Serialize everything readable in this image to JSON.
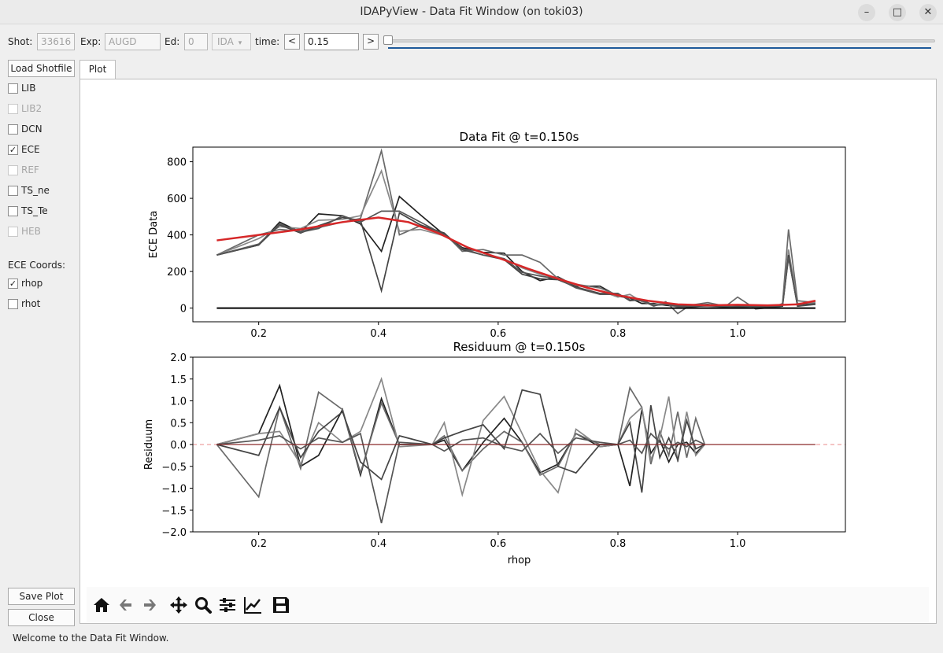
{
  "window": {
    "title": "IDAPyView - Data Fit Window (on toki03)",
    "controls": [
      "minimize-icon",
      "maximize-icon",
      "close-icon"
    ]
  },
  "toolbar": {
    "shot_label": "Shot:",
    "shot_value": "33616",
    "exp_label": "Exp:",
    "exp_value": "AUGD",
    "ed_label": "Ed:",
    "ed_value": "0",
    "diag_value": "IDA",
    "time_label": "time:",
    "time_value": "0.15",
    "prev_label": "<",
    "next_label": ">",
    "slider_fraction": 0.0
  },
  "sidebar": {
    "load_label": "Load Shotfile",
    "diagnostics": [
      {
        "label": "LIB",
        "checked": false,
        "enabled": true
      },
      {
        "label": "LIB2",
        "checked": false,
        "enabled": false
      },
      {
        "label": "DCN",
        "checked": false,
        "enabled": true
      },
      {
        "label": "ECE",
        "checked": true,
        "enabled": true
      },
      {
        "label": "REF",
        "checked": false,
        "enabled": false
      },
      {
        "label": "TS_ne",
        "checked": false,
        "enabled": true
      },
      {
        "label": "TS_Te",
        "checked": false,
        "enabled": true
      },
      {
        "label": "HEB",
        "checked": false,
        "enabled": false
      }
    ],
    "coords_label": "ECE Coords:",
    "coords": [
      {
        "label": "rhop",
        "checked": true
      },
      {
        "label": "rhot",
        "checked": false
      }
    ],
    "save_label": "Save Plot",
    "close_label": "Close"
  },
  "tabs": [
    {
      "label": "Plot"
    }
  ],
  "nav_icons": [
    "home-icon",
    "back-icon",
    "forward-icon",
    "pan-icon",
    "zoom-icon",
    "configure-subplots-icon",
    "edit-axes-icon",
    "save-figure-icon"
  ],
  "status": "Welcome to the Data Fit Window.",
  "colors": {
    "fit": "#d62728",
    "data": "#000000",
    "zero_line": "#e88a8a",
    "accent": "#1f5a9a"
  },
  "chart_data": [
    {
      "type": "line",
      "title": "Data Fit @ t=0.150s",
      "xlabel": "",
      "ylabel": "ECE Data",
      "xlim": [
        0.09,
        1.18
      ],
      "ylim": [
        -75,
        880
      ],
      "xticks": [
        0.2,
        0.4,
        0.6,
        0.8,
        1.0
      ],
      "yticks": [
        0,
        200,
        400,
        600,
        800
      ],
      "x": [
        0.13,
        0.2,
        0.235,
        0.27,
        0.3,
        0.34,
        0.37,
        0.405,
        0.435,
        0.47,
        0.51,
        0.54,
        0.575,
        0.61,
        0.64,
        0.67,
        0.7,
        0.73,
        0.77,
        0.8,
        0.82,
        0.84,
        0.86,
        0.88,
        0.9,
        0.92,
        0.95,
        0.98,
        1.0,
        1.03,
        1.06,
        1.075,
        1.085,
        1.1,
        1.13
      ],
      "series": [
        {
          "values": [
            290,
            345,
            470,
            415,
            515,
            505,
            460,
            310,
            610,
            510,
            400,
            330,
            305,
            300,
            200,
            150,
            170,
            120,
            120,
            65,
            55,
            25,
            25,
            15,
            10,
            15,
            20,
            10,
            5,
            10,
            15,
            20,
            280,
            15,
            25
          ]
        },
        {
          "values": [
            290,
            400,
            430,
            420,
            440,
            470,
            490,
            860,
            400,
            450,
            410,
            310,
            320,
            290,
            290,
            250,
            160,
            130,
            110,
            70,
            60,
            40,
            10,
            35,
            -30,
            15,
            30,
            10,
            60,
            -5,
            5,
            25,
            430,
            40,
            30
          ]
        },
        {
          "values": [
            290,
            380,
            445,
            435,
            480,
            485,
            505,
            750,
            420,
            430,
            395,
            345,
            300,
            270,
            220,
            185,
            165,
            125,
            95,
            60,
            75,
            35,
            20,
            25,
            5,
            10,
            10,
            5,
            15,
            5,
            10,
            20,
            320,
            25,
            30
          ]
        },
        {
          "values": [
            290,
            345,
            455,
            410,
            450,
            495,
            480,
            95,
            520,
            455,
            410,
            320,
            290,
            265,
            185,
            160,
            155,
            115,
            80,
            80,
            40,
            45,
            15,
            20,
            15,
            5,
            15,
            5,
            10,
            10,
            5,
            10,
            290,
            10,
            20
          ]
        },
        {
          "values": [
            290,
            350,
            460,
            415,
            435,
            505,
            470,
            530,
            530,
            470,
            400,
            325,
            290,
            270,
            195,
            175,
            160,
            110,
            75,
            75,
            45,
            40,
            15,
            20,
            10,
            10,
            15,
            10,
            5,
            10,
            10,
            15,
            275,
            15,
            20
          ]
        }
      ],
      "zero_series": {
        "x": [
          0.13,
          1.13
        ],
        "values": [
          0,
          0
        ]
      },
      "fit": {
        "x": [
          0.13,
          0.2,
          0.27,
          0.34,
          0.4,
          0.45,
          0.5,
          0.55,
          0.6,
          0.65,
          0.7,
          0.75,
          0.8,
          0.85,
          0.9,
          0.95,
          1.0,
          1.05,
          1.1,
          1.13
        ],
        "values": [
          370,
          400,
          430,
          470,
          495,
          470,
          410,
          330,
          275,
          215,
          160,
          110,
          70,
          40,
          20,
          15,
          18,
          15,
          20,
          40
        ]
      }
    },
    {
      "type": "line",
      "title": "Residuum @ t=0.150s",
      "xlabel": "rhop",
      "ylabel": "Residuum",
      "xlim": [
        0.09,
        1.18
      ],
      "ylim": [
        -2.0,
        2.0
      ],
      "xticks": [
        0.2,
        0.4,
        0.6,
        0.8,
        1.0
      ],
      "yticks": [
        2.0,
        1.5,
        1.0,
        0.5,
        0.0,
        -0.5,
        -1.0,
        -1.5,
        -2.0
      ],
      "x": [
        0.13,
        0.2,
        0.235,
        0.27,
        0.3,
        0.34,
        0.37,
        0.405,
        0.435,
        0.49,
        0.51,
        0.54,
        0.575,
        0.61,
        0.64,
        0.67,
        0.7,
        0.73,
        0.77,
        0.8,
        0.82,
        0.84,
        0.855,
        0.87,
        0.885,
        0.9,
        0.915,
        0.93,
        0.945
      ],
      "series": [
        {
          "values": [
            0,
            0.25,
            1.35,
            -0.5,
            -0.25,
            0.8,
            -0.7,
            1.05,
            0,
            0,
            0.1,
            -0.6,
            0.05,
            0.6,
            0.05,
            -0.65,
            -0.45,
            0.25,
            -0.05,
            0,
            -0.95,
            0.8,
            -0.2,
            0.1,
            -0.4,
            0,
            0.05,
            -0.2,
            0
          ]
        },
        {
          "values": [
            0,
            -1.2,
            0.85,
            -0.55,
            1.2,
            0.8,
            -0.65,
            0.95,
            0,
            0,
            0.2,
            -0.6,
            -0.1,
            0.3,
            0.05,
            -0.7,
            -0.5,
            0.25,
            0,
            0,
            1.3,
            0.85,
            -0.45,
            0.3,
            -0.25,
            0.75,
            -0.3,
            0.6,
            0
          ]
        },
        {
          "values": [
            0,
            0.25,
            0.3,
            -0.45,
            0.5,
            0.05,
            0.3,
            1.5,
            -0.05,
            0,
            0.5,
            -1.15,
            0.55,
            1.1,
            0.25,
            -0.6,
            -1.1,
            0.35,
            -0.05,
            0,
            0.6,
            0.85,
            -0.35,
            0.15,
            1.1,
            -0.4,
            0.75,
            -0.25,
            0
          ]
        },
        {
          "values": [
            0,
            -0.25,
            0.85,
            -0.3,
            0.3,
            0.75,
            -0.4,
            -0.8,
            0.2,
            0,
            0.15,
            0.3,
            0.45,
            -0.1,
            1.25,
            1.15,
            -0.5,
            -0.65,
            0,
            0,
            0.5,
            -1.1,
            0.9,
            -0.3,
            0.15,
            -0.35,
            0.55,
            -0.1,
            0
          ]
        },
        {
          "values": [
            0,
            0.1,
            0.2,
            -0.1,
            0.15,
            0.05,
            0.25,
            -1.8,
            0.05,
            0,
            -0.15,
            0.1,
            0.15,
            -0.05,
            -0.15,
            0.25,
            -0.2,
            0.15,
            0.05,
            0,
            0.1,
            -0.2,
            0.25,
            0.05,
            -0.1,
            0.05,
            -0.05,
            0.1,
            0
          ]
        }
      ]
    }
  ]
}
